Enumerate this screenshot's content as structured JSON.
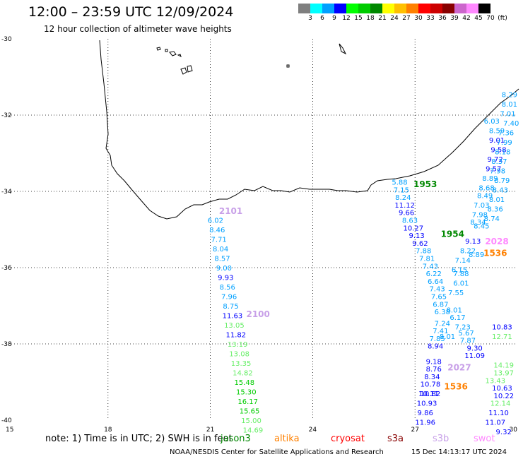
{
  "header": {
    "title": "12:00 – 23:59 UTC 12/09/2024",
    "subtitle": "12 hour collection of altimeter wave heights"
  },
  "colorbar": {
    "labels": [
      "3",
      "6",
      "9",
      "12",
      "15",
      "18",
      "21",
      "24",
      "27",
      "30",
      "33",
      "36",
      "39",
      "42",
      "45",
      "70",
      "(ft)"
    ],
    "colors": [
      "#7f7f7f",
      "#00ffff",
      "#00a0ff",
      "#0000ff",
      "#00ff00",
      "#00cc00",
      "#008800",
      "#ffff00",
      "#ffc000",
      "#ff8000",
      "#ff0000",
      "#cc0000",
      "#880000",
      "#cc66cc",
      "#ff88ff",
      "#000000"
    ]
  },
  "map": {
    "lon_ticks": [
      "15",
      "18",
      "21",
      "24",
      "27",
      "30"
    ],
    "lat_ticks": [
      "-30",
      "-32",
      "-34",
      "-36",
      "-38",
      "-40"
    ],
    "extent": {
      "lon": [
        15,
        30
      ],
      "lat": [
        -40,
        -30
      ]
    }
  },
  "track_labels": [
    {
      "text": "2101",
      "lon": 21.6,
      "lat": -34.5,
      "color": "#c8a0e8"
    },
    {
      "text": "2100",
      "lon": 22.4,
      "lat": -37.2,
      "color": "#c8a0e8"
    },
    {
      "text": "1953",
      "lon": 27.3,
      "lat": -33.8,
      "color": "#008800"
    },
    {
      "text": "1954",
      "lon": 28.1,
      "lat": -35.1,
      "color": "#008800"
    },
    {
      "text": "2028",
      "lon": 29.4,
      "lat": -35.3,
      "color": "#ff88ff"
    },
    {
      "text": "1536",
      "lon": 29.7,
      "lat": -35.6,
      "color": "#ff8000"
    },
    {
      "text": "2027",
      "lon": 28.3,
      "lat": -38.6,
      "color": "#c8a0e8"
    },
    {
      "text": "1536",
      "lon": 28.2,
      "lat": -39.1,
      "color": "#ff8000"
    }
  ],
  "swh_obs": [
    {
      "v": "6.02",
      "lon": 21.15,
      "lat": -34.75,
      "c": "#00a0ff"
    },
    {
      "v": "8.46",
      "lon": 21.2,
      "lat": -35.0,
      "c": "#00a0ff"
    },
    {
      "v": "7.71",
      "lon": 21.25,
      "lat": -35.25,
      "c": "#00a0ff"
    },
    {
      "v": "8.04",
      "lon": 21.3,
      "lat": -35.5,
      "c": "#00a0ff"
    },
    {
      "v": "8.57",
      "lon": 21.35,
      "lat": -35.75,
      "c": "#00a0ff"
    },
    {
      "v": "9.00",
      "lon": 21.4,
      "lat": -36.0,
      "c": "#00a0ff"
    },
    {
      "v": "9.93",
      "lon": 21.45,
      "lat": -36.25,
      "c": "#0000ff"
    },
    {
      "v": "8.56",
      "lon": 21.5,
      "lat": -36.5,
      "c": "#00a0ff"
    },
    {
      "v": "7.96",
      "lon": 21.55,
      "lat": -36.75,
      "c": "#00a0ff"
    },
    {
      "v": "8.75",
      "lon": 21.6,
      "lat": -37.0,
      "c": "#00a0ff"
    },
    {
      "v": "11.63",
      "lon": 21.65,
      "lat": -37.25,
      "c": "#0000ff"
    },
    {
      "v": "13.05",
      "lon": 21.7,
      "lat": -37.5,
      "c": "#66ee66"
    },
    {
      "v": "11.82",
      "lon": 21.75,
      "lat": -37.75,
      "c": "#0000ff"
    },
    {
      "v": "13.19",
      "lon": 21.8,
      "lat": -38.0,
      "c": "#66ee66"
    },
    {
      "v": "13.08",
      "lon": 21.85,
      "lat": -38.25,
      "c": "#66ee66"
    },
    {
      "v": "13.35",
      "lon": 21.9,
      "lat": -38.5,
      "c": "#66ee66"
    },
    {
      "v": "14.82",
      "lon": 21.95,
      "lat": -38.75,
      "c": "#66ee66"
    },
    {
      "v": "15.48",
      "lon": 22.0,
      "lat": -39.0,
      "c": "#00cc00"
    },
    {
      "v": "15.30",
      "lon": 22.05,
      "lat": -39.25,
      "c": "#00cc00"
    },
    {
      "v": "16.17",
      "lon": 22.1,
      "lat": -39.5,
      "c": "#00cc00"
    },
    {
      "v": "15.65",
      "lon": 22.15,
      "lat": -39.75,
      "c": "#00cc00"
    },
    {
      "v": "15.00",
      "lon": 22.2,
      "lat": -40.0,
      "c": "#66ee66"
    },
    {
      "v": "14.69",
      "lon": 22.25,
      "lat": -40.25,
      "c": "#66ee66"
    },
    {
      "v": "5.88",
      "lon": 26.55,
      "lat": -33.75,
      "c": "#00a0ff"
    },
    {
      "v": "7.15",
      "lon": 26.6,
      "lat": -33.95,
      "c": "#00a0ff"
    },
    {
      "v": "8.24",
      "lon": 26.65,
      "lat": -34.15,
      "c": "#00a0ff"
    },
    {
      "v": "11.12",
      "lon": 26.7,
      "lat": -34.35,
      "c": "#0000ff"
    },
    {
      "v": "9.66",
      "lon": 26.75,
      "lat": -34.55,
      "c": "#0000ff"
    },
    {
      "v": "8.63",
      "lon": 26.85,
      "lat": -34.75,
      "c": "#00a0ff"
    },
    {
      "v": "10.27",
      "lon": 26.95,
      "lat": -34.95,
      "c": "#0000ff"
    },
    {
      "v": "9.13",
      "lon": 27.05,
      "lat": -35.15,
      "c": "#0000ff"
    },
    {
      "v": "9.62",
      "lon": 27.15,
      "lat": -35.35,
      "c": "#0000ff"
    },
    {
      "v": "7.88",
      "lon": 27.25,
      "lat": -35.55,
      "c": "#00a0ff"
    },
    {
      "v": "7.81",
      "lon": 27.35,
      "lat": -35.75,
      "c": "#00a0ff"
    },
    {
      "v": "7.43",
      "lon": 27.45,
      "lat": -35.95,
      "c": "#00a0ff"
    },
    {
      "v": "6.22",
      "lon": 27.55,
      "lat": -36.15,
      "c": "#00a0ff"
    },
    {
      "v": "6.64",
      "lon": 27.6,
      "lat": -36.35,
      "c": "#00a0ff"
    },
    {
      "v": "7.43",
      "lon": 27.65,
      "lat": -36.55,
      "c": "#00a0ff"
    },
    {
      "v": "7.65",
      "lon": 27.7,
      "lat": -36.75,
      "c": "#00a0ff"
    },
    {
      "v": "6.87",
      "lon": 27.75,
      "lat": -36.95,
      "c": "#00a0ff"
    },
    {
      "v": "6.38",
      "lon": 27.8,
      "lat": -37.15,
      "c": "#00a0ff"
    },
    {
      "v": "7.24",
      "lon": 27.8,
      "lat": -37.45,
      "c": "#00a0ff"
    },
    {
      "v": "7.41",
      "lon": 27.75,
      "lat": -37.65,
      "c": "#00a0ff"
    },
    {
      "v": "7.85",
      "lon": 27.65,
      "lat": -37.85,
      "c": "#00a0ff"
    },
    {
      "v": "8.94",
      "lon": 27.6,
      "lat": -38.05,
      "c": "#0000ff"
    },
    {
      "v": "9.18",
      "lon": 27.55,
      "lat": -38.45,
      "c": "#0000ff"
    },
    {
      "v": "8.76",
      "lon": 27.55,
      "lat": -38.65,
      "c": "#0000ff"
    },
    {
      "v": "8.34",
      "lon": 27.5,
      "lat": -38.85,
      "c": "#0000ff"
    },
    {
      "v": "10.78",
      "lon": 27.45,
      "lat": -39.05,
      "c": "#0000ff"
    },
    {
      "v": "10.11",
      "lon": 27.4,
      "lat": -39.3,
      "c": "#0000ff"
    },
    {
      "v": "10.82",
      "lon": 27.45,
      "lat": -39.3,
      "c": "#0000ff"
    },
    {
      "v": "10.93",
      "lon": 27.35,
      "lat": -39.55,
      "c": "#0000ff"
    },
    {
      "v": "9.86",
      "lon": 27.3,
      "lat": -39.8,
      "c": "#0000ff"
    },
    {
      "v": "11.96",
      "lon": 27.3,
      "lat": -40.05,
      "c": "#0000ff"
    },
    {
      "v": "6.03",
      "lon": 29.25,
      "lat": -32.15,
      "c": "#00a0ff"
    },
    {
      "v": "8.59",
      "lon": 29.4,
      "lat": -32.4,
      "c": "#00a0ff"
    },
    {
      "v": "9.01",
      "lon": 29.4,
      "lat": -32.65,
      "c": "#0000ff"
    },
    {
      "v": "9.58",
      "lon": 29.45,
      "lat": -32.9,
      "c": "#0000ff"
    },
    {
      "v": "9.72",
      "lon": 29.35,
      "lat": -33.15,
      "c": "#0000ff"
    },
    {
      "v": "9.57",
      "lon": 29.3,
      "lat": -33.4,
      "c": "#0000ff"
    },
    {
      "v": "8.89",
      "lon": 29.2,
      "lat": -33.65,
      "c": "#00a0ff"
    },
    {
      "v": "8.68",
      "lon": 29.1,
      "lat": -33.9,
      "c": "#00a0ff"
    },
    {
      "v": "8.49",
      "lon": 29.05,
      "lat": -34.1,
      "c": "#00a0ff"
    },
    {
      "v": "7.03",
      "lon": 28.95,
      "lat": -34.35,
      "c": "#00a0ff"
    },
    {
      "v": "7.98",
      "lon": 28.9,
      "lat": -34.6,
      "c": "#00a0ff"
    },
    {
      "v": "8.34",
      "lon": 28.85,
      "lat": -34.8,
      "c": "#00a0ff"
    },
    {
      "v": "8.45",
      "lon": 28.95,
      "lat": -34.9,
      "c": "#00a0ff"
    },
    {
      "v": "9.13",
      "lon": 28.7,
      "lat": -35.3,
      "c": "#0000ff"
    },
    {
      "v": "8.22",
      "lon": 28.55,
      "lat": -35.55,
      "c": "#00a0ff"
    },
    {
      "v": "8.89",
      "lon": 28.8,
      "lat": -35.65,
      "c": "#00a0ff"
    },
    {
      "v": "7.14",
      "lon": 28.4,
      "lat": -35.8,
      "c": "#00a0ff"
    },
    {
      "v": "6.15",
      "lon": 28.3,
      "lat": -36.05,
      "c": "#00a0ff"
    },
    {
      "v": "7.88",
      "lon": 28.35,
      "lat": -36.15,
      "c": "#00a0ff"
    },
    {
      "v": "6.01",
      "lon": 28.35,
      "lat": -36.4,
      "c": "#00a0ff"
    },
    {
      "v": "7.55",
      "lon": 28.2,
      "lat": -36.65,
      "c": "#00a0ff"
    },
    {
      "v": "8.01",
      "lon": 28.15,
      "lat": -37.1,
      "c": "#00a0ff"
    },
    {
      "v": "6.17",
      "lon": 28.25,
      "lat": -37.3,
      "c": "#00a0ff"
    },
    {
      "v": "7.23",
      "lon": 28.4,
      "lat": -37.55,
      "c": "#00a0ff"
    },
    {
      "v": "5.67",
      "lon": 28.5,
      "lat": -37.7,
      "c": "#00a0ff"
    },
    {
      "v": "8.01",
      "lon": 27.95,
      "lat": -37.8,
      "c": "#00a0ff"
    },
    {
      "v": "7.87",
      "lon": 28.55,
      "lat": -37.9,
      "c": "#00a0ff"
    },
    {
      "v": "9.30",
      "lon": 28.75,
      "lat": -38.1,
      "c": "#0000ff"
    },
    {
      "v": "11.09",
      "lon": 28.75,
      "lat": -38.3,
      "c": "#0000ff"
    },
    {
      "v": "10.83",
      "lon": 29.85,
      "lat": -37.55,
      "c": "#0000ff"
    },
    {
      "v": "12.71",
      "lon": 29.85,
      "lat": -37.8,
      "c": "#66ee66"
    },
    {
      "v": "14.19",
      "lon": 29.6,
      "lat": -38.55,
      "c": "#66ee66"
    },
    {
      "v": "13.97",
      "lon": 29.6,
      "lat": -38.75,
      "c": "#66ee66"
    },
    {
      "v": "13.43",
      "lon": 29.65,
      "lat": -38.95,
      "c": "#66ee66"
    },
    {
      "v": "10.63",
      "lon": 29.85,
      "lat": -39.15,
      "c": "#0000ff"
    },
    {
      "v": "10.22",
      "lon": 29.9,
      "lat": -39.35,
      "c": "#0000ff"
    },
    {
      "v": "12.14",
      "lon": 29.8,
      "lat": -39.55,
      "c": "#66ee66"
    },
    {
      "v": "11.10",
      "lon": 29.75,
      "lat": -39.8,
      "c": "#0000ff"
    },
    {
      "v": "11.07",
      "lon": 29.65,
      "lat": -40.05,
      "c": "#0000ff"
    },
    {
      "v": "9.32",
      "lon": 29.6,
      "lat": -40.3,
      "c": "#0000ff"
    },
    {
      "v": "8.29",
      "lon": 30.0,
      "lat": -31.45,
      "c": "#00a0ff"
    },
    {
      "v": "8.01",
      "lon": 30.0,
      "lat": -31.7,
      "c": "#00a0ff"
    },
    {
      "v": "7.01",
      "lon": 29.95,
      "lat": -31.95,
      "c": "#00a0ff"
    },
    {
      "v": "7.40",
      "lon": 30.05,
      "lat": -32.2,
      "c": "#00a0ff"
    },
    {
      "v": "7.36",
      "lon": 29.9,
      "lat": -32.45,
      "c": "#00a0ff"
    },
    {
      "v": "7.99",
      "lon": 29.85,
      "lat": -32.7,
      "c": "#00a0ff"
    },
    {
      "v": "8.18",
      "lon": 29.8,
      "lat": -32.95,
      "c": "#00a0ff"
    },
    {
      "v": "8.37",
      "lon": 29.7,
      "lat": -33.2,
      "c": "#00a0ff"
    },
    {
      "v": "7.98",
      "lon": 29.65,
      "lat": -33.45,
      "c": "#00a0ff"
    },
    {
      "v": "8.79",
      "lon": 29.55,
      "lat": -33.7,
      "c": "#00a0ff"
    },
    {
      "v": "8.43",
      "lon": 29.5,
      "lat": -33.95,
      "c": "#00a0ff"
    },
    {
      "v": "8.01",
      "lon": 29.4,
      "lat": -34.2,
      "c": "#00a0ff"
    },
    {
      "v": "8.36",
      "lon": 29.35,
      "lat": -34.45,
      "c": "#00a0ff"
    },
    {
      "v": "8.74",
      "lon": 29.25,
      "lat": -34.7,
      "c": "#00a0ff"
    }
  ],
  "footer": {
    "note": "note:  1) Time is in UTC; 2) SWH is in feet",
    "satellites": [
      {
        "name": "jason3",
        "color": "#008800"
      },
      {
        "name": "altika",
        "color": "#ff8000"
      },
      {
        "name": "cryosat",
        "color": "#ff0000"
      },
      {
        "name": "s3a",
        "color": "#880000"
      },
      {
        "name": "s3b",
        "color": "#c8a0e8"
      },
      {
        "name": "swot",
        "color": "#ff88ff"
      }
    ],
    "credit": "NOAA/NESDIS Center for Satellite Applications and Research",
    "timestamp": "15 Dec 14:13:17 UTC 2024"
  }
}
